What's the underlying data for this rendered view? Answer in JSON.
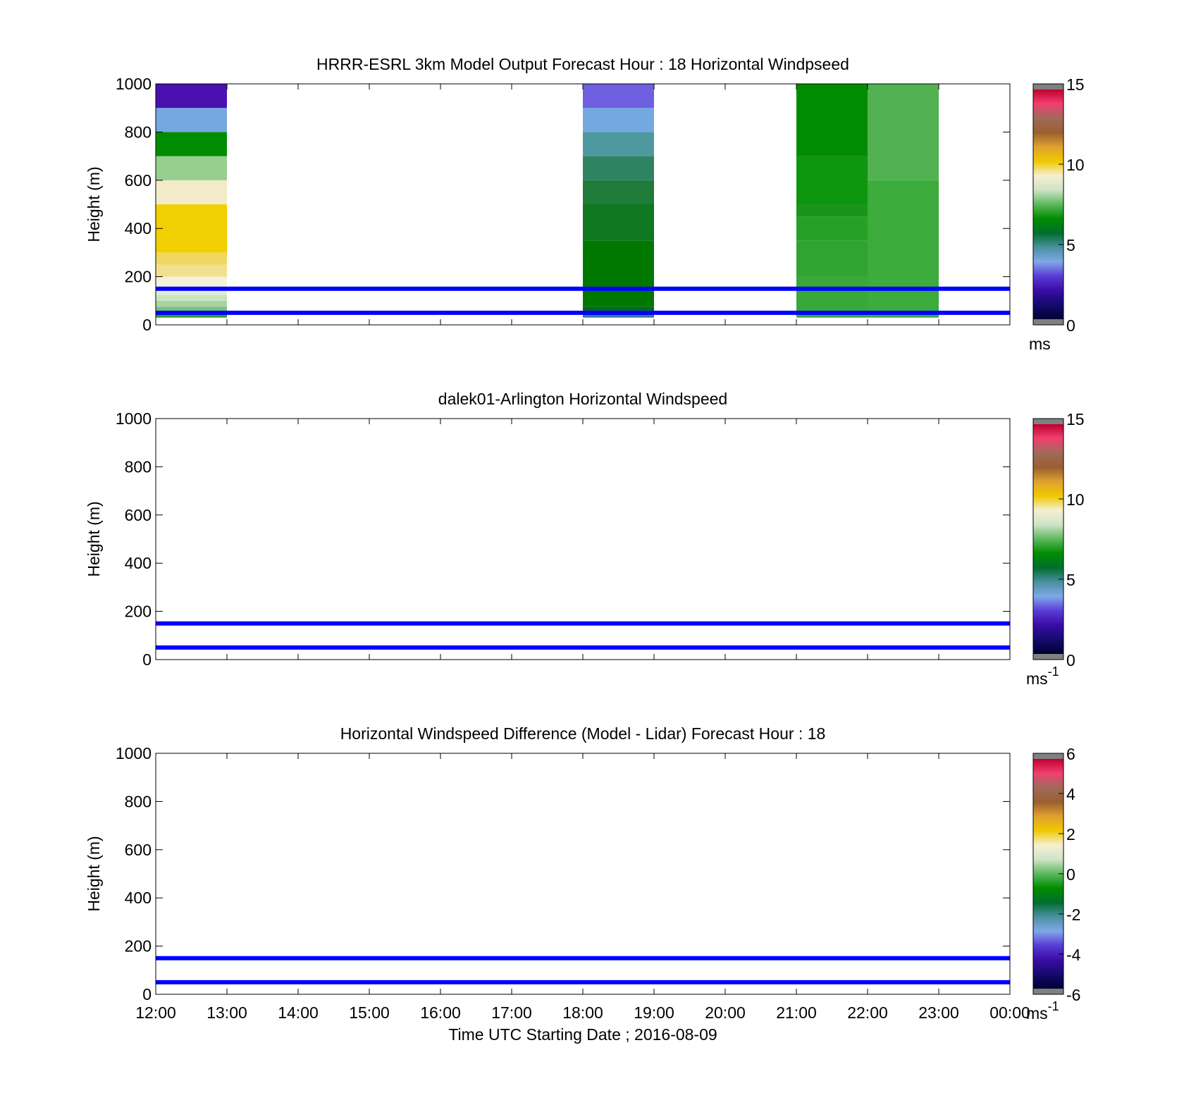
{
  "colors": {
    "ws_scale": [
      "#000030",
      "#140a6e",
      "#3a0ca6",
      "#5a3bd6",
      "#7fa8e8",
      "#4a90a0",
      "#006e2e",
      "#008c00",
      "#5cb85c",
      "#cfe3c8",
      "#f5f0d0",
      "#f0c800",
      "#e0a030",
      "#9a6030",
      "#a06a5a",
      "#f04070",
      "#c00030"
    ],
    "diff_scale": [
      "#000030",
      "#140a6e",
      "#3a0ca6",
      "#5a3bd6",
      "#7fa8e8",
      "#4a90a0",
      "#006e2e",
      "#008c00",
      "#5cb85c",
      "#cfe3c8",
      "#f5f0d0",
      "#f0c800",
      "#e0a030",
      "#9a6030",
      "#a06a5a",
      "#f04070",
      "#c00030"
    ],
    "line": "#0000ff",
    "colorbar_ends": "#808080"
  },
  "chart_data": [
    {
      "type": "heatmap",
      "title": "HRRR-ESRL 3km Model Output   Forecast Hour : 18 Horizontal Windpseed",
      "xlabel": "",
      "ylabel": "Height (m)",
      "xlim": [
        12,
        24
      ],
      "ylim": [
        0,
        1000
      ],
      "yticks": [
        "0",
        "200",
        "400",
        "600",
        "800",
        "1000"
      ],
      "colorbar": {
        "range": [
          0,
          15
        ],
        "ticks": [
          "0",
          "5",
          "10",
          "15"
        ],
        "unit": "ms",
        "unit_sup": ""
      },
      "hlines": [
        50,
        150
      ],
      "columns": [
        {
          "x0": 12,
          "x1": 13,
          "cells": [
            {
              "y0": 30,
              "y1": 50,
              "color": "#2e9e2e"
            },
            {
              "y0": 50,
              "y1": 75,
              "color": "#7cc07c"
            },
            {
              "y0": 75,
              "y1": 100,
              "color": "#a8d4a0"
            },
            {
              "y0": 100,
              "y1": 125,
              "color": "#c8e4c0"
            },
            {
              "y0": 125,
              "y1": 150,
              "color": "#e0eed8"
            },
            {
              "y0": 150,
              "y1": 175,
              "color": "#f2f2e0"
            },
            {
              "y0": 175,
              "y1": 200,
              "color": "#f5f0d8"
            },
            {
              "y0": 200,
              "y1": 250,
              "color": "#f0e090"
            },
            {
              "y0": 250,
              "y1": 300,
              "color": "#f0d860"
            },
            {
              "y0": 300,
              "y1": 500,
              "color": "#f2cf00"
            },
            {
              "y0": 500,
              "y1": 600,
              "color": "#f2ebc8"
            },
            {
              "y0": 600,
              "y1": 700,
              "color": "#98cf90"
            },
            {
              "y0": 700,
              "y1": 800,
              "color": "#008c00"
            },
            {
              "y0": 800,
              "y1": 900,
              "color": "#76a8e0"
            },
            {
              "y0": 900,
              "y1": 1000,
              "color": "#4a10b0"
            }
          ]
        },
        {
          "x0": 18,
          "x1": 19,
          "cells": [
            {
              "y0": 30,
              "y1": 50,
              "color": "#3a7aa0"
            },
            {
              "y0": 50,
              "y1": 75,
              "color": "#006a20"
            },
            {
              "y0": 75,
              "y1": 350,
              "color": "#007800"
            },
            {
              "y0": 350,
              "y1": 500,
              "color": "#107820"
            },
            {
              "y0": 500,
              "y1": 600,
              "color": "#207c3a"
            },
            {
              "y0": 600,
              "y1": 700,
              "color": "#2e8462"
            },
            {
              "y0": 700,
              "y1": 800,
              "color": "#4e98a0"
            },
            {
              "y0": 800,
              "y1": 900,
              "color": "#74a8e0"
            },
            {
              "y0": 900,
              "y1": 1000,
              "color": "#6e60e0"
            }
          ]
        },
        {
          "x0": 21,
          "x1": 22,
          "cells": [
            {
              "y0": 30,
              "y1": 200,
              "color": "#38a838"
            },
            {
              "y0": 200,
              "y1": 350,
              "color": "#30a430"
            },
            {
              "y0": 350,
              "y1": 450,
              "color": "#26a026"
            },
            {
              "y0": 450,
              "y1": 500,
              "color": "#1c941c"
            },
            {
              "y0": 500,
              "y1": 700,
              "color": "#0f960f"
            },
            {
              "y0": 700,
              "y1": 1000,
              "color": "#008c00"
            }
          ]
        },
        {
          "x0": 22,
          "x1": 23,
          "cells": [
            {
              "y0": 30,
              "y1": 600,
              "color": "#3cac3c"
            },
            {
              "y0": 600,
              "y1": 1000,
              "color": "#52b252"
            }
          ]
        }
      ]
    },
    {
      "type": "heatmap",
      "title": "dalek01-Arlington  Horizontal Windspeed",
      "xlabel": "",
      "ylabel": "Height (m)",
      "xlim": [
        12,
        24
      ],
      "ylim": [
        0,
        1000
      ],
      "yticks": [
        "0",
        "200",
        "400",
        "600",
        "800",
        "1000"
      ],
      "colorbar": {
        "range": [
          0,
          15
        ],
        "ticks": [
          "0",
          "5",
          "10",
          "15"
        ],
        "unit": "ms",
        "unit_sup": "-1"
      },
      "hlines": [
        50,
        150
      ],
      "columns": []
    },
    {
      "type": "heatmap",
      "title": "Horizontal Windspeed Difference (Model - Lidar) Forecast Hour : 18",
      "xlabel": "Time UTC  Starting Date ; 2016-08-09",
      "ylabel": "Height (m)",
      "xlim": [
        12,
        24
      ],
      "ylim": [
        0,
        1000
      ],
      "yticks": [
        "0",
        "200",
        "400",
        "600",
        "800",
        "1000"
      ],
      "xticks": [
        "12:00",
        "13:00",
        "14:00",
        "15:00",
        "16:00",
        "17:00",
        "18:00",
        "19:00",
        "20:00",
        "21:00",
        "22:00",
        "23:00",
        "00:00"
      ],
      "colorbar": {
        "range": [
          -6,
          6
        ],
        "ticks": [
          "-6",
          "-4",
          "-2",
          "0",
          "2",
          "4",
          "6"
        ],
        "unit": "ms",
        "unit_sup": "-1"
      },
      "hlines": [
        50,
        150
      ],
      "columns": []
    }
  ]
}
